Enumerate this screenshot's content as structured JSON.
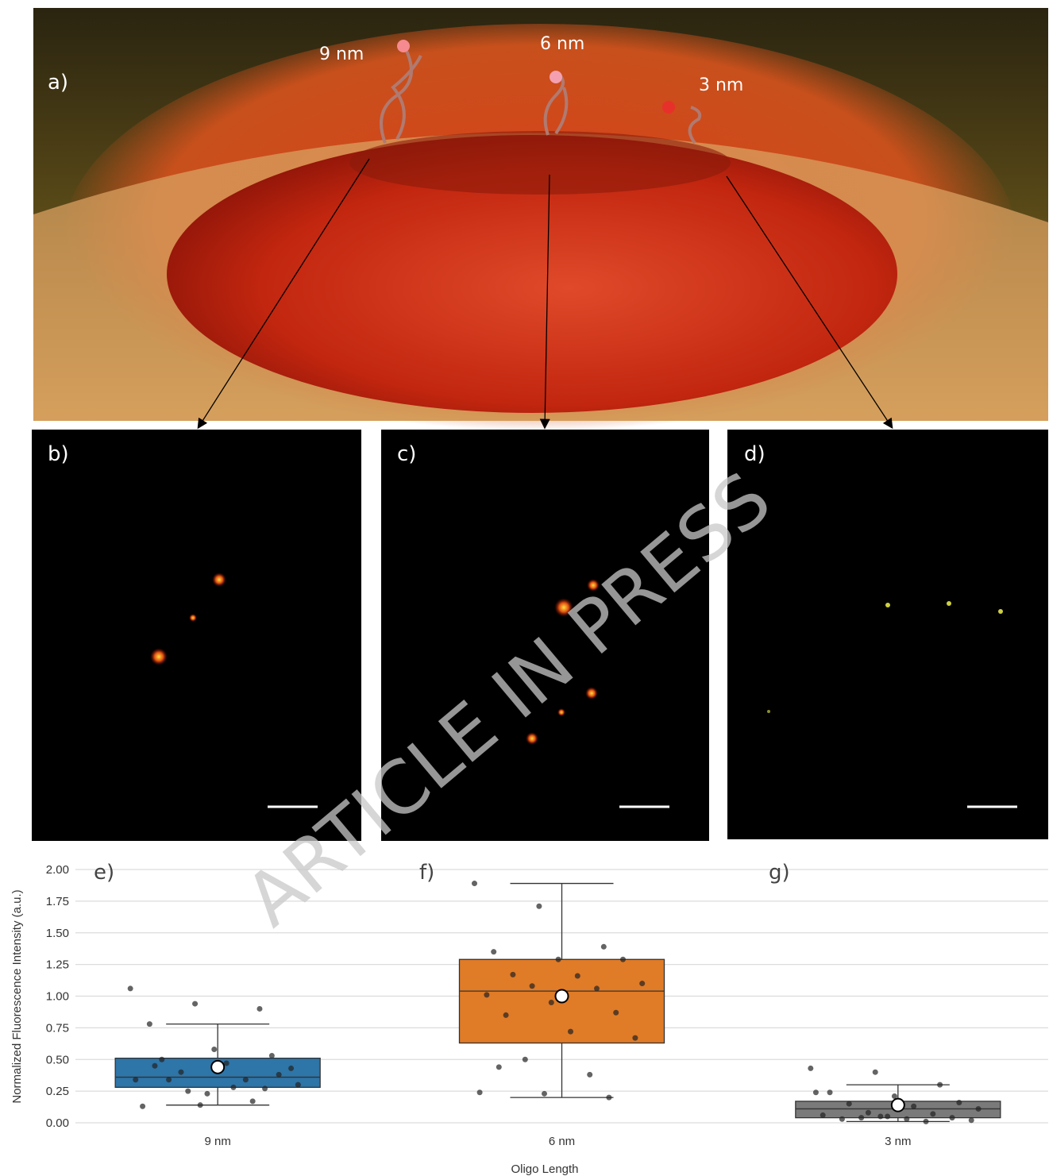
{
  "panels": {
    "a": {
      "label": "a)",
      "annotations": [
        "9 nm",
        "6 nm",
        "3 nm"
      ]
    },
    "b": {
      "label": "b)"
    },
    "c": {
      "label": "c)"
    },
    "d": {
      "label": "d)"
    }
  },
  "watermark": "ARTICLE IN PRESS",
  "chart_data": {
    "type": "box",
    "panel_labels": [
      "e)",
      "f)",
      "g)"
    ],
    "y_label": "Normalized Fluorescence Intensity (a.u.)",
    "x_label": "Oligo Length",
    "categories": [
      "9 nm",
      "6 nm",
      "3 nm"
    ],
    "ylim": [
      0,
      2
    ],
    "yticks": [
      {
        "value": 0,
        "label": "0.00"
      },
      0.25,
      {
        "value": 0.5,
        "label": "0.50"
      },
      0.75,
      {
        "value": 1,
        "label": "1.00"
      },
      1.25,
      {
        "value": 1.5,
        "label": "1.50"
      },
      1.75,
      {
        "value": 2,
        "label": "2.00"
      }
    ],
    "grid": true,
    "boxes": [
      {
        "color": "#2e75a8",
        "whisker_low": 0.14,
        "q1": 0.28,
        "median": 0.36,
        "q3": 0.51,
        "whisker_high": 0.78,
        "mean": 0.44,
        "points": [
          1.06,
          0.94,
          0.9,
          0.78,
          0.58,
          0.38,
          0.34,
          0.28,
          0.3,
          0.25,
          0.17,
          0.13,
          0.23,
          0.53,
          0.5,
          0.47,
          0.43,
          0.4,
          0.34,
          0.34,
          0.14,
          0.27,
          0.45
        ]
      },
      {
        "color": "#e07b27",
        "whisker_low": 0.2,
        "q1": 0.63,
        "median": 1.04,
        "q3": 1.29,
        "whisker_high": 1.89,
        "mean": 1.0,
        "points": [
          1.89,
          1.71,
          1.39,
          1.35,
          1.29,
          1.29,
          1.17,
          1.16,
          1.1,
          1.08,
          1.06,
          1.01,
          0.95,
          0.87,
          0.85,
          0.72,
          0.67,
          0.5,
          0.38,
          0.24,
          0.23,
          0.2,
          0.44
        ]
      },
      {
        "color": "#7a7a7a",
        "whisker_low": 0.01,
        "q1": 0.04,
        "median": 0.11,
        "q3": 0.17,
        "whisker_high": 0.3,
        "mean": 0.14,
        "points": [
          0.43,
          0.4,
          0.3,
          0.24,
          0.21,
          0.16,
          0.15,
          0.13,
          0.11,
          0.08,
          0.07,
          0.06,
          0.05,
          0.04,
          0.03,
          0.03,
          0.02,
          0.04,
          0.01,
          0.24,
          0.05
        ]
      }
    ]
  }
}
